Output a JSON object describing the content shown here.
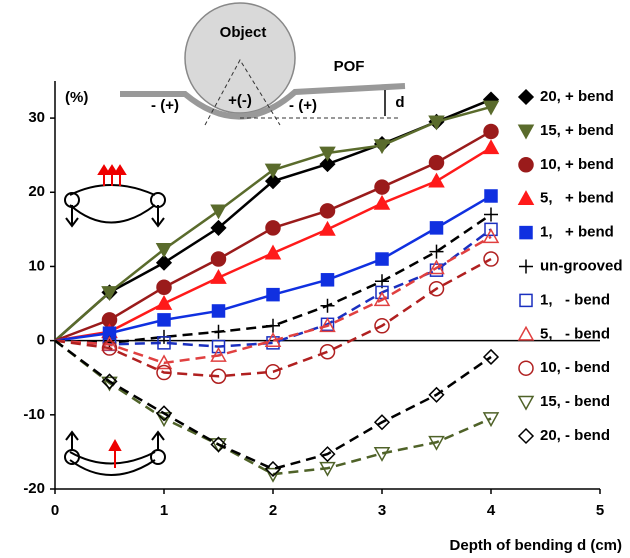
{
  "chart_data": {
    "type": "line",
    "xlabel": "Depth of bending d (cm)",
    "ylabel": "(%)",
    "annotations": [
      "Object",
      "POF",
      "- (+)",
      "+(-)",
      "- (+)",
      "d"
    ],
    "xlim": [
      0,
      5
    ],
    "xticks": [
      0,
      1,
      2,
      3,
      4,
      5
    ],
    "ylim": [
      -20,
      35
    ],
    "yticks": [
      -20,
      -10,
      0,
      10,
      20,
      30
    ],
    "x": [
      0,
      0.5,
      1,
      1.5,
      2,
      2.5,
      3,
      3.5,
      4
    ],
    "series": [
      {
        "name": "20, + bend",
        "color": "#000000",
        "marker": "diamond",
        "filled": true,
        "dashed": false,
        "values": [
          0,
          6.5,
          10.5,
          15.2,
          21.5,
          23.8,
          26.5,
          29.5,
          32.5
        ]
      },
      {
        "name": "15, + bend",
        "color": "#5a6b2c",
        "marker": "triangle-down",
        "filled": true,
        "dashed": false,
        "values": [
          0,
          6.5,
          12.3,
          17.5,
          23,
          25.3,
          26.3,
          29.5,
          31.5
        ]
      },
      {
        "name": "10, + bend",
        "color": "#9a1b1b",
        "marker": "circle",
        "filled": true,
        "dashed": false,
        "values": [
          0,
          2.8,
          7.2,
          11,
          15.2,
          17.5,
          20.7,
          24,
          28.2
        ]
      },
      {
        "name": "5,   + bend",
        "color": "#ff1a1a",
        "marker": "triangle",
        "filled": true,
        "dashed": false,
        "values": [
          0,
          1.2,
          5,
          8.5,
          11.8,
          15,
          18.5,
          21.5,
          26
        ]
      },
      {
        "name": "1,   + bend",
        "color": "#1030e0",
        "marker": "square",
        "filled": true,
        "dashed": false,
        "values": [
          0,
          1,
          2.8,
          4,
          6.2,
          8.2,
          11,
          15.2,
          19.5
        ]
      },
      {
        "name": "un-grooved",
        "color": "#000000",
        "marker": "plus",
        "filled": false,
        "dashed": true,
        "values": [
          0,
          -0.3,
          0.5,
          1.2,
          2,
          4.7,
          8,
          12,
          17
        ]
      },
      {
        "name": "1,   - bend",
        "color": "#1a2fbf",
        "marker": "square",
        "filled": false,
        "dashed": true,
        "values": [
          0,
          -0.5,
          -0.3,
          -0.8,
          -0.3,
          2.2,
          6.5,
          9.5,
          15
        ]
      },
      {
        "name": "5,   - bend",
        "color": "#e04040",
        "marker": "triangle",
        "filled": false,
        "dashed": true,
        "values": [
          0,
          -0.5,
          -3,
          -2,
          0,
          2,
          5.5,
          9.8,
          14
        ]
      },
      {
        "name": "10, - bend",
        "color": "#b02020",
        "marker": "circle",
        "filled": false,
        "dashed": true,
        "values": [
          0,
          -1,
          -4.3,
          -4.8,
          -4.2,
          -1.5,
          2,
          7,
          11
        ]
      },
      {
        "name": "15, - bend",
        "color": "#4f6228",
        "marker": "triangle-down",
        "filled": false,
        "dashed": true,
        "values": [
          0,
          -5.7,
          -10.5,
          -14,
          -18,
          -17.2,
          -15.2,
          -13.7,
          -10.5
        ]
      },
      {
        "name": "20, - bend",
        "color": "#000000",
        "marker": "diamond",
        "filled": false,
        "dashed": true,
        "values": [
          0,
          -5.5,
          -9.8,
          -14,
          -17.3,
          -15.3,
          -11,
          -7.3,
          -2.2
        ]
      }
    ]
  }
}
